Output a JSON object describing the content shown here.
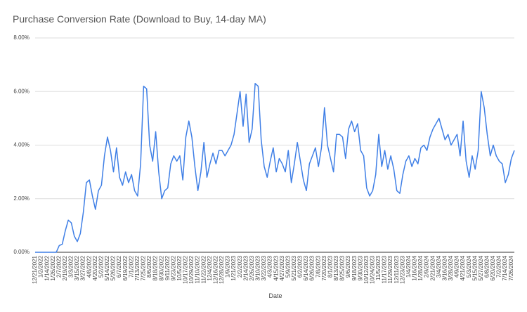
{
  "chart_data": {
    "type": "line",
    "title": "Purchase Conversion Rate (Download to Buy, 14-day MA)",
    "x_label": "Date",
    "categories": [
      "12/21/2021",
      null,
      "1/2/2022",
      null,
      "1/14/2022",
      null,
      "1/26/2022",
      null,
      "2/7/2022",
      null,
      "2/19/2022",
      null,
      "3/3/2022",
      null,
      "3/15/2022",
      null,
      "3/27/2022",
      null,
      "4/8/2022",
      null,
      "4/20/2022",
      null,
      "5/2/2022",
      null,
      "5/14/2022",
      null,
      "5/26/2022",
      null,
      "6/7/2022",
      null,
      "6/19/2022",
      null,
      "7/1/2022",
      null,
      "7/13/2022",
      null,
      "7/25/2022",
      null,
      "8/6/2022",
      null,
      "8/18/2022",
      null,
      "8/30/2022",
      null,
      "9/11/2022",
      null,
      "9/23/2022",
      null,
      "10/5/2022",
      null,
      "10/17/2022",
      null,
      "10/29/2022",
      null,
      "11/10/2022",
      null,
      "11/22/2022",
      null,
      "12/4/2022",
      null,
      "12/16/2022",
      null,
      "12/28/2022",
      null,
      "1/9/2023",
      null,
      "1/21/2023",
      null,
      "2/2/2023",
      null,
      "2/14/2023",
      null,
      "2/26/2023",
      null,
      "3/10/2023",
      null,
      "3/22/2023",
      null,
      "4/3/2023",
      null,
      "4/15/2023",
      null,
      "4/27/2023",
      null,
      "5/9/2023",
      null,
      "5/21/2023",
      null,
      "6/2/2023",
      null,
      "6/14/2023",
      null,
      "6/26/2023",
      null,
      "7/8/2023",
      null,
      "7/20/2023",
      null,
      "8/1/2023",
      null,
      "8/13/2023",
      null,
      "8/25/2023",
      null,
      "9/6/2023",
      null,
      "9/18/2023",
      null,
      "9/30/2023",
      null,
      "10/12/2023",
      null,
      "10/24/2023",
      null,
      "11/5/2023",
      null,
      "11/17/2023",
      null,
      "11/29/2023",
      null,
      "12/11/2023",
      null,
      "12/23/2023",
      null,
      "1/4/2024",
      null,
      "1/16/2024",
      null,
      "1/28/2024",
      null,
      "2/9/2024",
      null,
      "2/21/2024",
      null,
      "3/4/2024",
      null,
      "3/16/2024",
      null,
      "3/28/2024",
      null,
      "4/9/2024",
      null,
      "4/21/2024",
      null,
      "5/3/2024",
      null,
      "5/15/2024",
      null,
      "5/27/2024",
      null,
      "6/8/2024",
      null,
      "6/20/2024",
      null,
      "7/2/2024",
      null,
      "7/14/2024",
      null,
      "7/26/2024",
      null
    ],
    "series": [
      {
        "color": "#3f7fe6",
        "values": [
          0,
          0,
          0,
          0,
          0,
          0,
          0,
          0,
          0.25,
          0.3,
          0.8,
          1.2,
          1.1,
          0.6,
          0.4,
          0.7,
          1.5,
          2.6,
          2.7,
          2.1,
          1.6,
          2.3,
          2.5,
          3.6,
          4.3,
          3.8,
          3.0,
          3.9,
          2.8,
          2.5,
          3.0,
          2.6,
          2.9,
          2.3,
          2.1,
          3.3,
          6.2,
          6.1,
          4.0,
          3.4,
          4.5,
          3.0,
          2.0,
          2.3,
          2.4,
          3.3,
          3.6,
          3.4,
          3.6,
          2.7,
          4.3,
          4.9,
          4.3,
          3.2,
          2.3,
          3.0,
          4.1,
          2.8,
          3.3,
          3.7,
          3.3,
          3.8,
          3.8,
          3.6,
          3.8,
          4.0,
          4.4,
          5.2,
          6.0,
          4.7,
          5.9,
          4.1,
          4.6,
          6.3,
          6.2,
          4.2,
          3.2,
          2.8,
          3.4,
          3.9,
          3.0,
          3.5,
          3.3,
          3.0,
          3.8,
          2.6,
          3.3,
          4.1,
          3.4,
          2.7,
          2.3,
          3.3,
          3.6,
          3.9,
          3.2,
          3.9,
          5.4,
          4.0,
          3.5,
          3.0,
          4.4,
          4.4,
          4.3,
          3.5,
          4.6,
          4.9,
          4.5,
          4.8,
          3.8,
          3.6,
          2.4,
          2.1,
          2.3,
          2.9,
          4.4,
          3.2,
          3.8,
          3.1,
          3.6,
          3.1,
          2.3,
          2.2,
          2.9,
          3.4,
          3.6,
          3.2,
          3.5,
          3.3,
          3.9,
          4.0,
          3.8,
          4.3,
          4.6,
          4.8,
          5.0,
          4.6,
          4.2,
          4.4,
          4.0,
          4.2,
          4.4,
          3.6,
          4.9,
          3.4,
          2.8,
          3.6,
          3.1,
          3.8,
          6.0,
          5.4,
          4.4,
          3.6,
          4.0,
          3.6,
          3.4,
          3.3,
          2.6,
          2.9,
          3.5,
          3.8
        ]
      }
    ],
    "ylim": [
      0,
      8
    ],
    "yticks": [
      {
        "value": 0,
        "label": "0.00%"
      },
      {
        "value": 2,
        "label": "2.00%"
      },
      {
        "value": 4,
        "label": "4.00%"
      },
      {
        "value": 6,
        "label": "6.00%"
      },
      {
        "value": 8,
        "label": "8.00%"
      }
    ],
    "grid": true
  }
}
